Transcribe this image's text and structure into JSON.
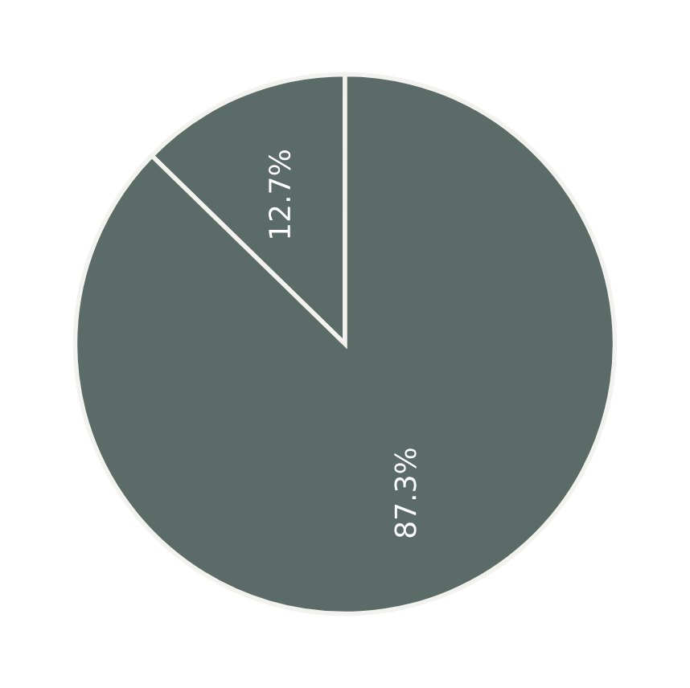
{
  "chart_data": {
    "type": "pie",
    "categories": [
      null,
      null
    ],
    "values": [
      12.7,
      87.3
    ],
    "colors": [
      "#5b6b67",
      "#5b6b67"
    ],
    "value_labels": [
      "12.7%",
      "87.3%"
    ]
  }
}
